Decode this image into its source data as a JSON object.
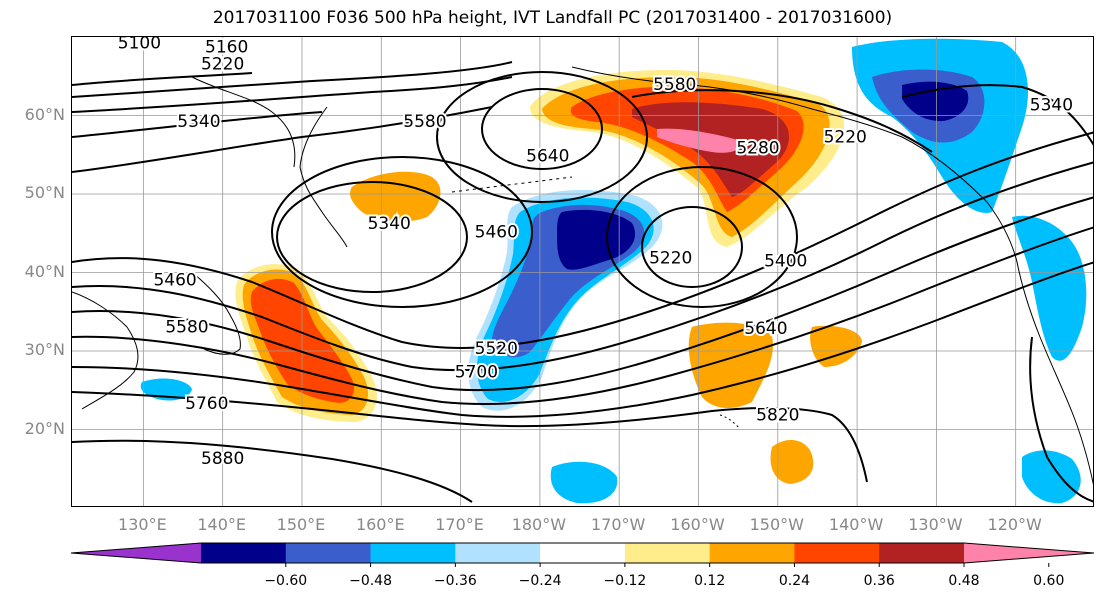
{
  "title": "2017031100 F036 500 hPa height, IVT Landfall PC (2017031400 - 2017031600)",
  "map": {
    "projection": "plate carree",
    "lon_range": [
      121,
      250
    ],
    "lat_range": [
      10,
      70
    ],
    "graticule": true,
    "lat_ticks": [
      {
        "value": 60,
        "label": "60°N"
      },
      {
        "value": 50,
        "label": "50°N"
      },
      {
        "value": 40,
        "label": "40°N"
      },
      {
        "value": 30,
        "label": "30°N"
      },
      {
        "value": 20,
        "label": "20°N"
      }
    ],
    "lon_ticks": [
      {
        "value": 130,
        "label": "130°E"
      },
      {
        "value": 140,
        "label": "140°E"
      },
      {
        "value": 150,
        "label": "150°E"
      },
      {
        "value": 160,
        "label": "160°E"
      },
      {
        "value": 170,
        "label": "170°E"
      },
      {
        "value": 180,
        "label": "180°W"
      },
      {
        "value": 190,
        "label": "170°W"
      },
      {
        "value": 200,
        "label": "160°W"
      },
      {
        "value": 210,
        "label": "150°W"
      },
      {
        "value": 220,
        "label": "140°W"
      },
      {
        "value": 230,
        "label": "130°W"
      },
      {
        "value": 240,
        "label": "120°W"
      }
    ],
    "contour_labels": [
      {
        "text": "5100",
        "lon": 129.5,
        "lat": 69.3
      },
      {
        "text": "5160",
        "lon": 140.5,
        "lat": 68.8
      },
      {
        "text": "5220",
        "lon": 140,
        "lat": 66.6
      },
      {
        "text": "5340",
        "lon": 137,
        "lat": 59.3
      },
      {
        "text": "5580",
        "lon": 165.5,
        "lat": 59.3
      },
      {
        "text": "5640",
        "lon": 181,
        "lat": 54.9
      },
      {
        "text": "5580",
        "lon": 197,
        "lat": 64
      },
      {
        "text": "5280",
        "lon": 207.5,
        "lat": 55.9
      },
      {
        "text": "5220",
        "lon": 218.5,
        "lat": 57.3
      },
      {
        "text": "5340",
        "lon": 244.5,
        "lat": 61.4
      },
      {
        "text": "5340",
        "lon": 161,
        "lat": 46.3
      },
      {
        "text": "5460",
        "lon": 174.5,
        "lat": 45.2
      },
      {
        "text": "5220",
        "lon": 196.5,
        "lat": 41.9
      },
      {
        "text": "5400",
        "lon": 211,
        "lat": 41.5
      },
      {
        "text": "5460",
        "lon": 134,
        "lat": 39.1
      },
      {
        "text": "5580",
        "lon": 135.5,
        "lat": 33.1
      },
      {
        "text": "5520",
        "lon": 174.5,
        "lat": 30.4
      },
      {
        "text": "5700",
        "lon": 172,
        "lat": 27.4
      },
      {
        "text": "5640",
        "lon": 208.5,
        "lat": 32.9
      },
      {
        "text": "5760",
        "lon": 138,
        "lat": 23.4
      },
      {
        "text": "5820",
        "lon": 210,
        "lat": 21.9
      },
      {
        "text": "5880",
        "lon": 140,
        "lat": 16.4
      }
    ]
  },
  "colorbar": {
    "ticks": [
      "−0.60",
      "−0.48",
      "−0.36",
      "−0.24",
      "−0.12",
      "0.12",
      "0.24",
      "0.36",
      "0.48",
      "0.60"
    ],
    "colors": [
      "#9a32cd",
      "#00008b",
      "#3a5fcd",
      "#00bfff",
      "#b0e2ff",
      "#ffffff",
      "#ffec8b",
      "#ffa500",
      "#ff4500",
      "#b22222",
      "#ff82ab"
    ],
    "extend": "both"
  }
}
